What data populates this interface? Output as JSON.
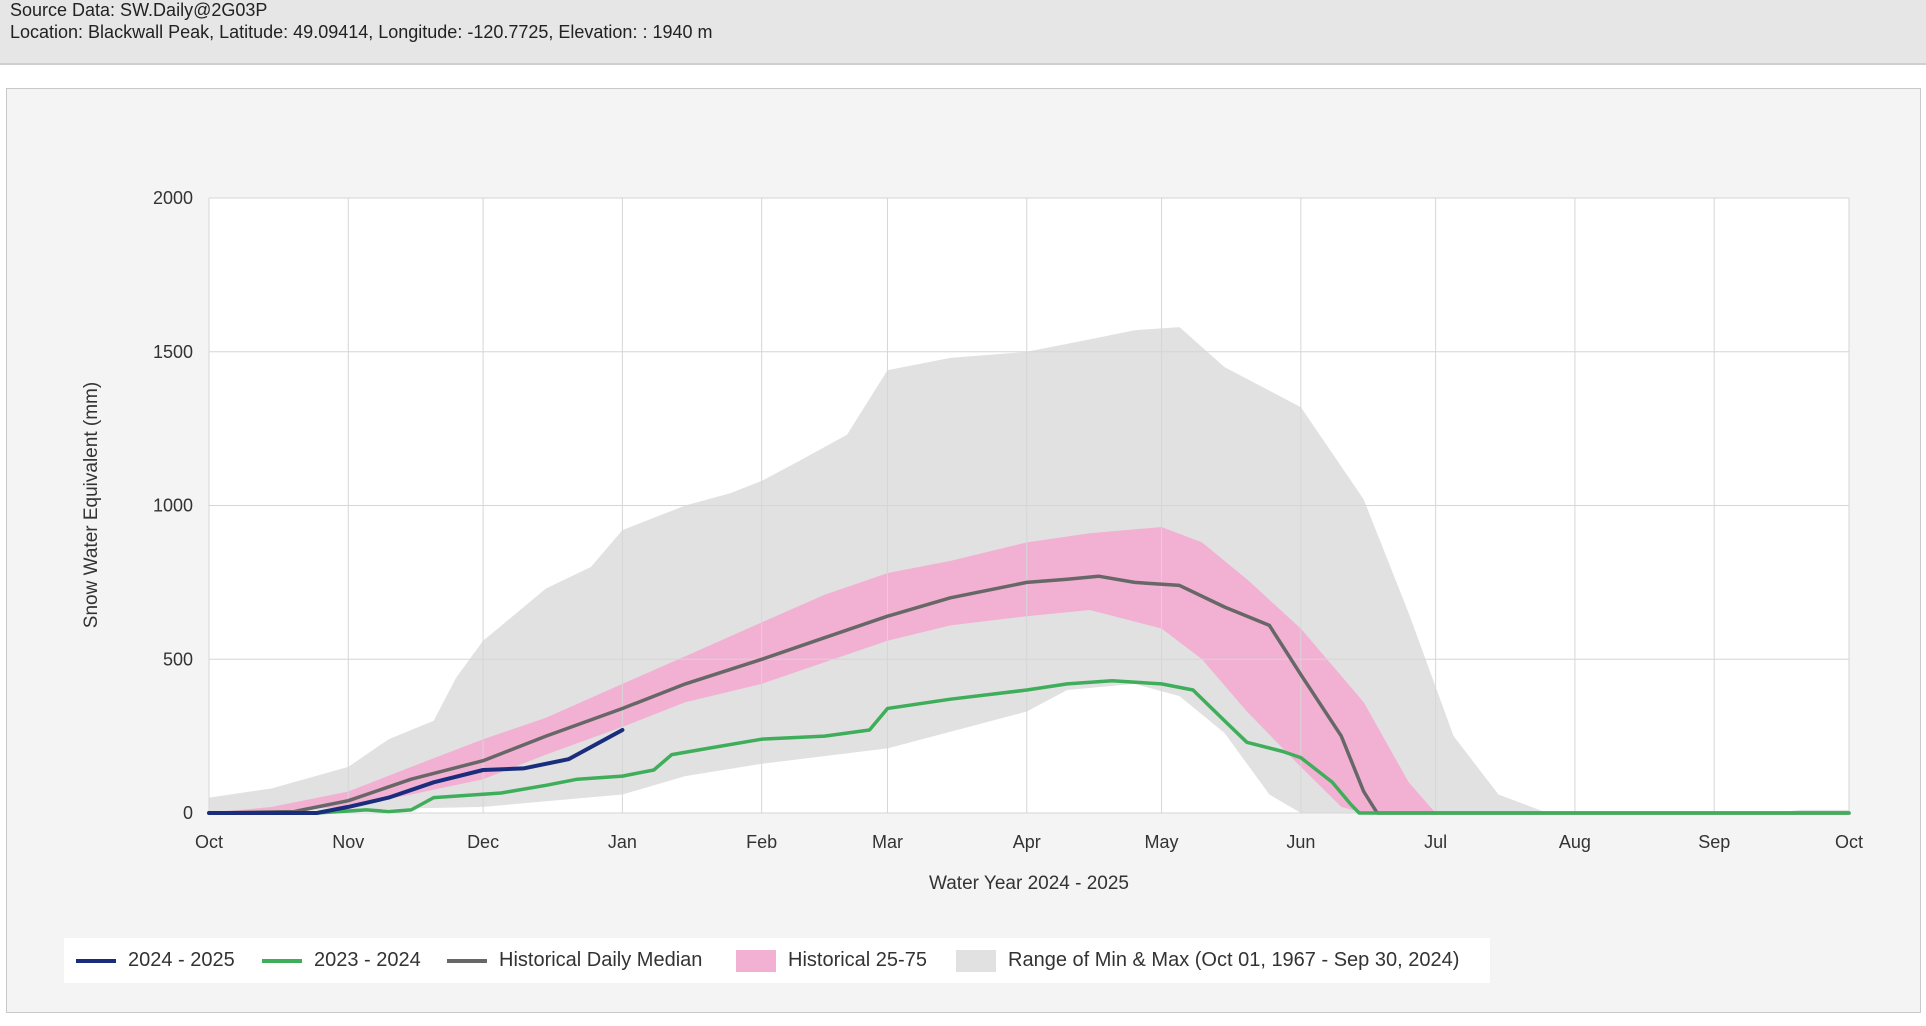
{
  "header": {
    "source": "Source Data: SW.Daily@2G03P",
    "location": "Location: Blackwall Peak, Latitude: 49.09414, Longitude: -120.7725, Elevation: : 1940 m"
  },
  "colors": {
    "current": "#1a2d7c",
    "previous": "#3fae5a",
    "median": "#676767",
    "quartile_band": "#f2b1d3",
    "minmax_band": "#e1e1e1",
    "grid": "#d6d6d6",
    "plot_bg": "#ffffff",
    "panel_bg": "#f4f4f4"
  },
  "chart_data": {
    "type": "area",
    "title": "",
    "xlabel": "Water Year 2024 - 2025",
    "ylabel": "Snow Water Equivalent (mm)",
    "ylim": [
      0,
      2000
    ],
    "yticks": [
      0,
      500,
      1000,
      1500,
      2000
    ],
    "xlim": [
      "2024-10-01",
      "2025-10-01"
    ],
    "xticks": [
      {
        "date": "2024-10-01",
        "label": "Oct"
      },
      {
        "date": "2024-11-01",
        "label": "Nov"
      },
      {
        "date": "2024-12-01",
        "label": "Dec"
      },
      {
        "date": "2025-01-01",
        "label": "Jan"
      },
      {
        "date": "2025-02-01",
        "label": "Feb"
      },
      {
        "date": "2025-03-01",
        "label": "Mar"
      },
      {
        "date": "2025-04-01",
        "label": "Apr"
      },
      {
        "date": "2025-05-01",
        "label": "May"
      },
      {
        "date": "2025-06-01",
        "label": "Jun"
      },
      {
        "date": "2025-07-01",
        "label": "Jul"
      },
      {
        "date": "2025-08-01",
        "label": "Aug"
      },
      {
        "date": "2025-09-01",
        "label": "Sep"
      },
      {
        "date": "2025-10-01",
        "label": "Oct"
      }
    ],
    "grid": true,
    "legend_position": "bottom",
    "minmax_band": {
      "name": "Range of Min & Max (Oct 01, 1967 - Sep 30, 2024)",
      "upper": [
        [
          "2024-10-01",
          50
        ],
        [
          "2024-10-15",
          80
        ],
        [
          "2024-11-01",
          150
        ],
        [
          "2024-11-10",
          240
        ],
        [
          "2024-11-20",
          300
        ],
        [
          "2024-11-25",
          440
        ],
        [
          "2024-12-01",
          560
        ],
        [
          "2024-12-15",
          730
        ],
        [
          "2024-12-25",
          800
        ],
        [
          "2025-01-01",
          920
        ],
        [
          "2025-01-15",
          1000
        ],
        [
          "2025-01-25",
          1040
        ],
        [
          "2025-02-01",
          1080
        ],
        [
          "2025-02-10",
          1150
        ],
        [
          "2025-02-20",
          1230
        ],
        [
          "2025-03-01",
          1440
        ],
        [
          "2025-03-15",
          1480
        ],
        [
          "2025-04-01",
          1500
        ],
        [
          "2025-04-15",
          1540
        ],
        [
          "2025-04-25",
          1570
        ],
        [
          "2025-05-05",
          1580
        ],
        [
          "2025-05-15",
          1450
        ],
        [
          "2025-06-01",
          1320
        ],
        [
          "2025-06-15",
          1020
        ],
        [
          "2025-06-25",
          650
        ],
        [
          "2025-07-05",
          250
        ],
        [
          "2025-07-15",
          60
        ],
        [
          "2025-07-25",
          5
        ],
        [
          "2025-09-15",
          0
        ],
        [
          "2025-09-20",
          10
        ],
        [
          "2025-10-01",
          10
        ]
      ],
      "lower": [
        [
          "2024-10-01",
          0
        ],
        [
          "2024-12-01",
          20
        ],
        [
          "2025-01-01",
          60
        ],
        [
          "2025-01-15",
          120
        ],
        [
          "2025-02-01",
          160
        ],
        [
          "2025-03-01",
          210
        ],
        [
          "2025-04-01",
          330
        ],
        [
          "2025-04-10",
          400
        ],
        [
          "2025-04-25",
          420
        ],
        [
          "2025-05-05",
          380
        ],
        [
          "2025-05-15",
          260
        ],
        [
          "2025-05-25",
          60
        ],
        [
          "2025-06-01",
          0
        ],
        [
          "2025-10-01",
          0
        ]
      ]
    },
    "quartile_band": {
      "name": "Historical 25-75",
      "upper": [
        [
          "2024-10-01",
          0
        ],
        [
          "2024-10-15",
          20
        ],
        [
          "2024-11-01",
          70
        ],
        [
          "2024-11-15",
          150
        ],
        [
          "2024-12-01",
          240
        ],
        [
          "2024-12-15",
          310
        ],
        [
          "2025-01-01",
          420
        ],
        [
          "2025-01-15",
          510
        ],
        [
          "2025-02-01",
          620
        ],
        [
          "2025-02-15",
          710
        ],
        [
          "2025-03-01",
          780
        ],
        [
          "2025-03-15",
          820
        ],
        [
          "2025-04-01",
          880
        ],
        [
          "2025-04-15",
          910
        ],
        [
          "2025-05-01",
          930
        ],
        [
          "2025-05-10",
          880
        ],
        [
          "2025-05-20",
          760
        ],
        [
          "2025-06-01",
          600
        ],
        [
          "2025-06-15",
          360
        ],
        [
          "2025-06-25",
          100
        ],
        [
          "2025-07-01",
          0
        ],
        [
          "2025-10-01",
          0
        ]
      ],
      "lower": [
        [
          "2024-10-01",
          0
        ],
        [
          "2024-11-01",
          20
        ],
        [
          "2024-11-15",
          60
        ],
        [
          "2024-12-01",
          110
        ],
        [
          "2024-12-15",
          190
        ],
        [
          "2025-01-01",
          280
        ],
        [
          "2025-01-15",
          360
        ],
        [
          "2025-02-01",
          420
        ],
        [
          "2025-02-15",
          490
        ],
        [
          "2025-03-01",
          560
        ],
        [
          "2025-03-15",
          610
        ],
        [
          "2025-04-01",
          640
        ],
        [
          "2025-04-15",
          660
        ],
        [
          "2025-05-01",
          600
        ],
        [
          "2025-05-10",
          500
        ],
        [
          "2025-05-20",
          330
        ],
        [
          "2025-06-01",
          150
        ],
        [
          "2025-06-10",
          20
        ],
        [
          "2025-06-15",
          0
        ],
        [
          "2025-10-01",
          0
        ]
      ]
    },
    "series": [
      {
        "name": "Historical Daily Median",
        "points": [
          [
            "2024-10-01",
            0
          ],
          [
            "2024-10-20",
            5
          ],
          [
            "2024-11-01",
            40
          ],
          [
            "2024-11-15",
            110
          ],
          [
            "2024-12-01",
            170
          ],
          [
            "2024-12-15",
            250
          ],
          [
            "2025-01-01",
            340
          ],
          [
            "2025-01-15",
            420
          ],
          [
            "2025-02-01",
            500
          ],
          [
            "2025-02-15",
            570
          ],
          [
            "2025-03-01",
            640
          ],
          [
            "2025-03-15",
            700
          ],
          [
            "2025-04-01",
            750
          ],
          [
            "2025-04-10",
            760
          ],
          [
            "2025-04-17",
            770
          ],
          [
            "2025-04-25",
            750
          ],
          [
            "2025-05-05",
            740
          ],
          [
            "2025-05-15",
            670
          ],
          [
            "2025-05-25",
            610
          ],
          [
            "2025-06-01",
            450
          ],
          [
            "2025-06-10",
            250
          ],
          [
            "2025-06-15",
            70
          ],
          [
            "2025-06-18",
            0
          ],
          [
            "2025-10-01",
            0
          ]
        ]
      },
      {
        "name": "2023 - 2024",
        "points": [
          [
            "2024-10-01",
            0
          ],
          [
            "2024-10-25",
            0
          ],
          [
            "2024-11-05",
            10
          ],
          [
            "2024-11-10",
            5
          ],
          [
            "2024-11-15",
            10
          ],
          [
            "2024-11-20",
            50
          ],
          [
            "2024-12-05",
            65
          ],
          [
            "2024-12-15",
            90
          ],
          [
            "2024-12-22",
            110
          ],
          [
            "2025-01-01",
            120
          ],
          [
            "2025-01-08",
            140
          ],
          [
            "2025-01-12",
            190
          ],
          [
            "2025-01-20",
            210
          ],
          [
            "2025-02-01",
            240
          ],
          [
            "2025-02-15",
            250
          ],
          [
            "2025-02-25",
            270
          ],
          [
            "2025-03-01",
            340
          ],
          [
            "2025-03-15",
            370
          ],
          [
            "2025-04-01",
            400
          ],
          [
            "2025-04-10",
            420
          ],
          [
            "2025-04-20",
            430
          ],
          [
            "2025-05-01",
            420
          ],
          [
            "2025-05-08",
            400
          ],
          [
            "2025-05-15",
            300
          ],
          [
            "2025-05-20",
            230
          ],
          [
            "2025-05-28",
            200
          ],
          [
            "2025-06-01",
            180
          ],
          [
            "2025-06-08",
            100
          ],
          [
            "2025-06-12",
            30
          ],
          [
            "2025-06-14",
            0
          ],
          [
            "2025-10-01",
            0
          ]
        ]
      },
      {
        "name": "2024 - 2025",
        "points": [
          [
            "2024-10-01",
            0
          ],
          [
            "2024-10-25",
            0
          ],
          [
            "2024-11-01",
            20
          ],
          [
            "2024-11-10",
            50
          ],
          [
            "2024-11-20",
            100
          ],
          [
            "2024-12-01",
            140
          ],
          [
            "2024-12-10",
            145
          ],
          [
            "2024-12-20",
            175
          ],
          [
            "2025-01-01",
            270
          ]
        ]
      }
    ]
  },
  "legend": [
    {
      "label": "2024 - 2025",
      "kind": "line",
      "color": "#1a2d7c"
    },
    {
      "label": "2023 - 2024",
      "kind": "line",
      "color": "#3fae5a"
    },
    {
      "label": "Historical Daily Median",
      "kind": "line",
      "color": "#676767"
    },
    {
      "label": "Historical 25-75",
      "kind": "box",
      "color": "#f2b1d3"
    },
    {
      "label": "Range of Min & Max (Oct 01, 1967 - Sep 30, 2024)",
      "kind": "box",
      "color": "#e1e1e1"
    }
  ]
}
